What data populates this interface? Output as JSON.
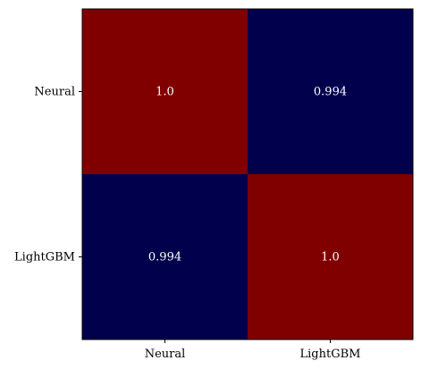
{
  "chart_data": {
    "type": "heatmap",
    "x_categories": [
      "Neural",
      "LightGBM"
    ],
    "y_categories": [
      "Neural",
      "LightGBM"
    ],
    "values": [
      [
        1.0,
        0.994
      ],
      [
        0.994,
        1.0
      ]
    ],
    "cell_labels": [
      [
        "1.0",
        "0.994"
      ],
      [
        "0.994",
        "1.0"
      ]
    ],
    "colors": {
      "high": "#800000",
      "low": "#00004d"
    },
    "title": "",
    "xlabel": "",
    "ylabel": ""
  }
}
